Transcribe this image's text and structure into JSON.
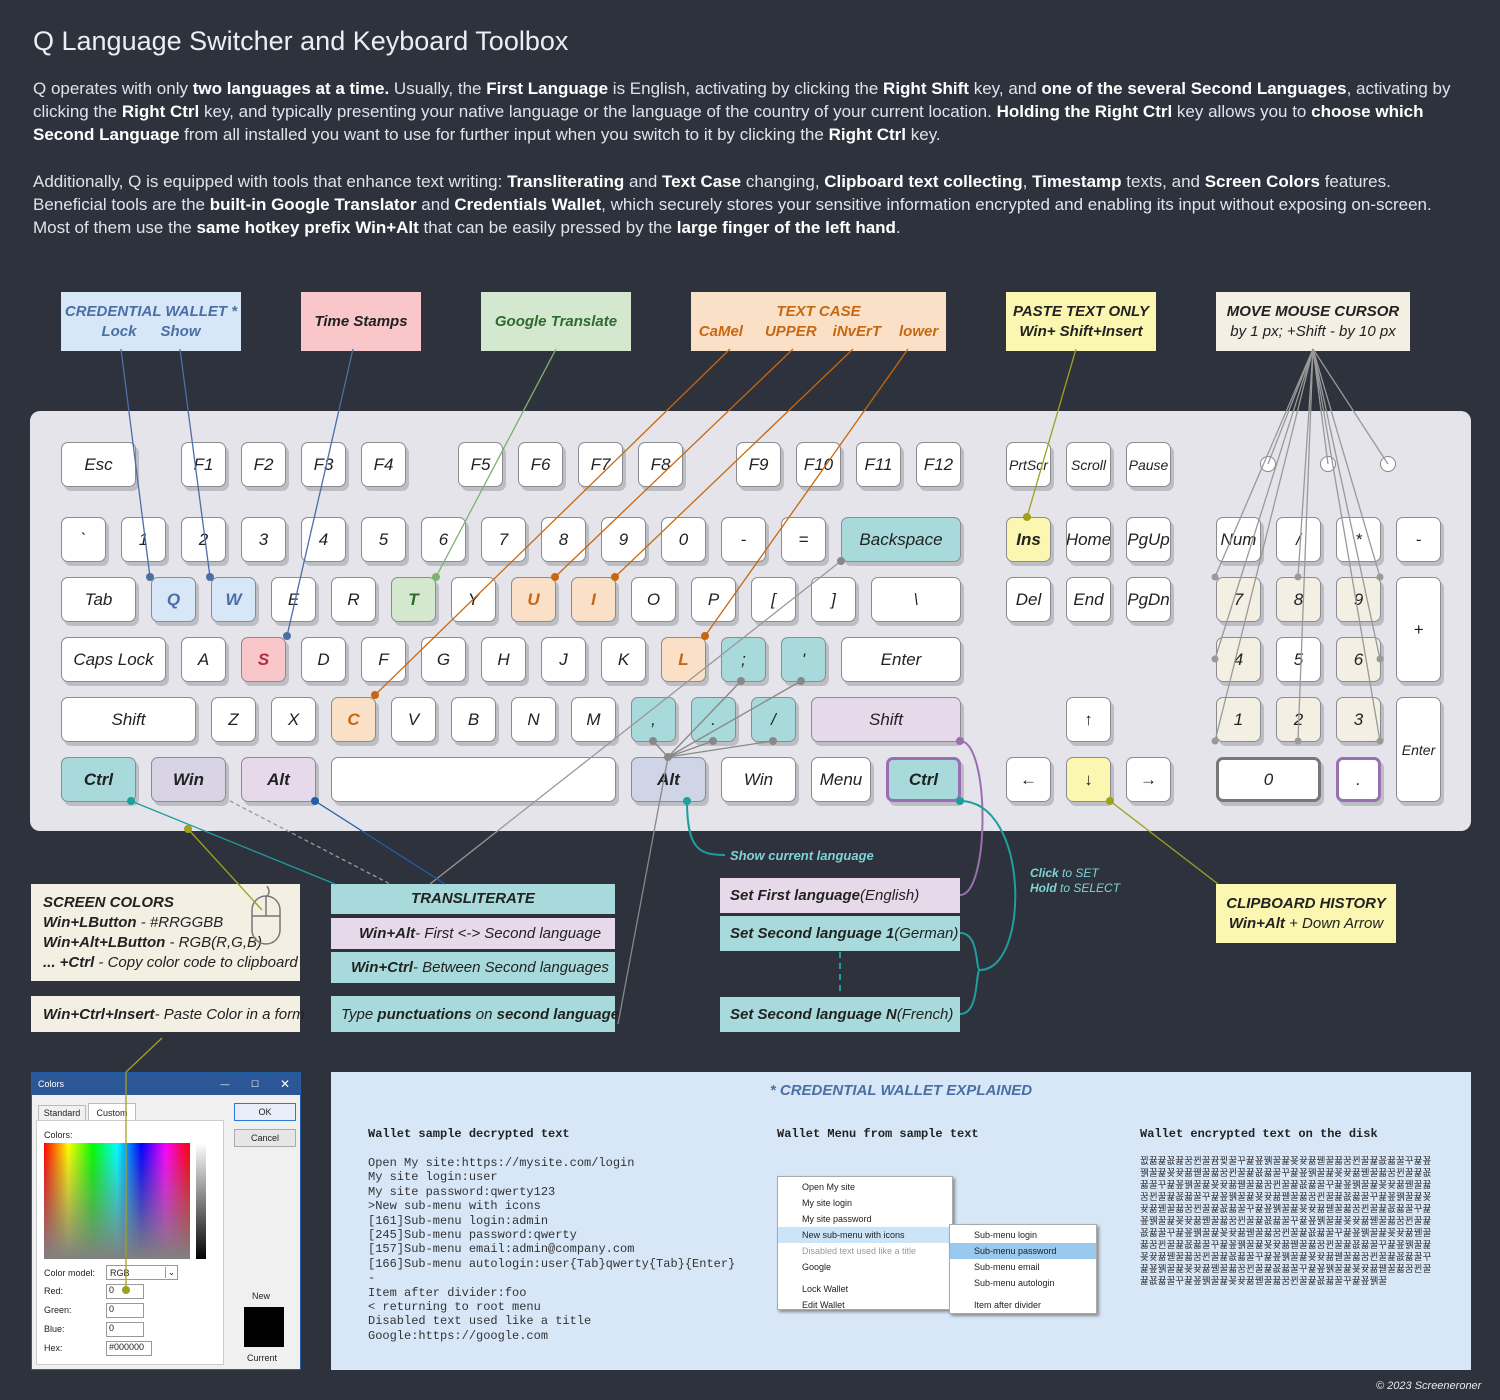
{
  "title": "Q Language Switcher and Keyboard Toolbox",
  "para1": [
    {
      "t": "Q operates with only "
    },
    {
      "t": "two languages at a time.",
      "b": 1
    },
    {
      "t": " Usually, the "
    },
    {
      "t": "First Language",
      "b": 1
    },
    {
      "t": " is English, activating by clicking the "
    },
    {
      "t": "Right Shift",
      "b": 1
    },
    {
      "t": " key, and "
    },
    {
      "t": "one of the several Second Languages",
      "b": 1
    },
    {
      "t": ", activating by clicking the "
    },
    {
      "t": "Right Ctrl",
      "b": 1
    },
    {
      "t": " key, and typically presenting your native language or the language of the country of your current location. "
    },
    {
      "t": "Holding the Right Ctrl",
      "b": 1
    },
    {
      "t": " key allows you to "
    },
    {
      "t": "choose which Second Language",
      "b": 1
    },
    {
      "t": " from all installed you want to use for further input when you switch to it by clicking the "
    },
    {
      "t": "Right Ctrl",
      "b": 1
    },
    {
      "t": " key."
    }
  ],
  "para2": [
    {
      "t": "Additionally, Q is equipped with tools that enhance text writing: "
    },
    {
      "t": "Transliterating",
      "b": 1
    },
    {
      "t": " and "
    },
    {
      "t": "Text Case",
      "b": 1
    },
    {
      "t": " changing, "
    },
    {
      "t": "Clipboard text collecting",
      "b": 1
    },
    {
      "t": ", "
    },
    {
      "t": "Timestamp",
      "b": 1
    },
    {
      "t": " texts, and "
    },
    {
      "t": "Screen Colors",
      "b": 1
    },
    {
      "t": " features. Beneficial tools are the "
    },
    {
      "t": "built-in Google Translator",
      "b": 1
    },
    {
      "t": " and "
    },
    {
      "t": "Credentials Wallet",
      "b": 1
    },
    {
      "t": ", which securely stores your sensitive information encrypted and enabling its input without exposing on-screen. Most of them use the "
    },
    {
      "t": "same hotkey prefix Win+Alt",
      "b": 1
    },
    {
      "t": " that can be easily pressed by the "
    },
    {
      "t": "large finger of the left hand",
      "b": 1
    },
    {
      "t": "."
    }
  ],
  "keys": [
    {
      "l": "Esc"
    },
    {
      "l": "F1"
    },
    {
      "l": "F2"
    },
    {
      "l": "F3"
    },
    {
      "l": "F4"
    },
    {
      "l": "F5"
    },
    {
      "l": "F6"
    },
    {
      "l": "F7"
    },
    {
      "l": "F8"
    },
    {
      "l": "F9"
    },
    {
      "l": "F10"
    },
    {
      "l": "F11"
    },
    {
      "l": "F12"
    },
    {
      "l": "PrtScr"
    },
    {
      "l": "Scroll"
    },
    {
      "l": "Pause"
    },
    {
      "l": "`"
    },
    {
      "l": "1"
    },
    {
      "l": "2"
    },
    {
      "l": "3"
    },
    {
      "l": "4"
    },
    {
      "l": "5"
    },
    {
      "l": "6"
    },
    {
      "l": "7"
    },
    {
      "l": "8"
    },
    {
      "l": "9"
    },
    {
      "l": "0"
    },
    {
      "l": "-"
    },
    {
      "l": "="
    },
    {
      "l": "Backspace",
      "c": "#a8dadc"
    },
    {
      "l": "Ins",
      "c": "#fbf7b0"
    },
    {
      "l": "Home"
    },
    {
      "l": "PgUp"
    },
    {
      "l": "Num"
    },
    {
      "l": "/"
    },
    {
      "l": "*"
    },
    {
      "l": "-"
    },
    {
      "l": "Tab"
    },
    {
      "l": "Q",
      "c": "#d7e7f8"
    },
    {
      "l": "W",
      "c": "#d7e7f8"
    },
    {
      "l": "E"
    },
    {
      "l": "R"
    },
    {
      "l": "T",
      "c": "#d3e8cf"
    },
    {
      "l": "Y"
    },
    {
      "l": "U",
      "c": "#fbe0c8"
    },
    {
      "l": "I",
      "c": "#fbe0c8"
    },
    {
      "l": "O"
    },
    {
      "l": "P"
    },
    {
      "l": "["
    },
    {
      "l": "]"
    },
    {
      "l": "\\"
    },
    {
      "l": "Del"
    },
    {
      "l": "End"
    },
    {
      "l": "PgDn"
    },
    {
      "l": "7",
      "c": "#f3efe3"
    },
    {
      "l": "8",
      "c": "#f3efe3"
    },
    {
      "l": "9",
      "c": "#f3efe3"
    },
    {
      "l": "+"
    },
    {
      "l": "Caps Lock"
    },
    {
      "l": "A"
    },
    {
      "l": "S",
      "c": "#f9c6c9"
    },
    {
      "l": "D"
    },
    {
      "l": "F"
    },
    {
      "l": "G"
    },
    {
      "l": "H"
    },
    {
      "l": "J"
    },
    {
      "l": "K"
    },
    {
      "l": "L",
      "c": "#fbe0c8"
    },
    {
      "l": ";",
      "c": "#a8dadc"
    },
    {
      "l": "'",
      "c": "#a8dadc"
    },
    {
      "l": "Enter"
    },
    {
      "l": "4",
      "c": "#f3efe3"
    },
    {
      "l": "5"
    },
    {
      "l": "6",
      "c": "#f3efe3"
    },
    {
      "l": "Shift"
    },
    {
      "l": "Z"
    },
    {
      "l": "X"
    },
    {
      "l": "C",
      "c": "#fbe0c8"
    },
    {
      "l": "V"
    },
    {
      "l": "B"
    },
    {
      "l": "N"
    },
    {
      "l": "M"
    },
    {
      "l": ",",
      "c": "#a8dadc"
    },
    {
      "l": ".",
      "c": "#a8dadc"
    },
    {
      "l": "/",
      "c": "#a8dadc"
    },
    {
      "l": "Shift",
      "c": "#e6d9ea"
    },
    {
      "l": "↑"
    },
    {
      "l": "1",
      "c": "#f3efe3"
    },
    {
      "l": "2",
      "c": "#f3efe3"
    },
    {
      "l": "3",
      "c": "#f3efe3"
    },
    {
      "l": "Enter"
    },
    {
      "l": "Ctrl",
      "c": "#a8dadc"
    },
    {
      "l": "Win",
      "c": "#d8d4e6"
    },
    {
      "l": "Alt",
      "c": "#e6d9ea"
    },
    {
      "l": ""
    },
    {
      "l": "Alt",
      "c": "#cfd4e6"
    },
    {
      "l": "Win"
    },
    {
      "l": "Menu"
    },
    {
      "l": "Ctrl",
      "c": "#a8dadc"
    },
    {
      "l": "←"
    },
    {
      "l": "↓",
      "c": "#fbf7b0"
    },
    {
      "l": "→"
    },
    {
      "l": "0"
    },
    {
      "l": "."
    }
  ],
  "callouts": {
    "wallet": {
      "title": "CREDENTIAL WALLET *",
      "a": "Lock",
      "b": "Show"
    },
    "timestamps": "Time Stamps",
    "translate": "Google Translate",
    "textcase": {
      "title": "TEXT CASE",
      "a": "CaMel",
      "b": "UPPER",
      "c": "iNvErT",
      "d": "lower"
    },
    "paste": {
      "title": "PASTE TEXT ONLY",
      "sub": "Win+  Shift+Insert"
    },
    "mouse": {
      "title": "MOVE MOUSE CURSOR",
      "sub": "by 1 px; +Shift - by 10 px"
    },
    "screencolors": {
      "title": "SCREEN COLORS",
      "l1a": "Win+LButton",
      "l1b": " - #RRGGBB",
      "l2a": "Win+Alt+LButton",
      "l2b": " - RGB(R,G,B)",
      "l3a": "... +Ctrl",
      "l3b": " - Copy color code to clipboard"
    },
    "pastecolor": {
      "a": "Win+Ctrl+Insert",
      "b": " - Paste Color in a form"
    },
    "translit": "TRANSLITERATE",
    "translit1": {
      "a": "Win+Alt",
      "b": " - First <-> Second language"
    },
    "translit2": {
      "a": "Win+Ctrl",
      "b": " - Between Second languages"
    },
    "punct": {
      "a": "Type ",
      "b": "punctuations",
      "c": " on ",
      "d": "second language"
    },
    "showlang": "Show current language",
    "first": {
      "a": "Set First language",
      "b": " (English)"
    },
    "second1": {
      "a": "Set Second language 1",
      "b": " (German)"
    },
    "secondN": {
      "a": "Set Second language N",
      "b": " (French)"
    },
    "click": {
      "a": "Click",
      "b": " to SET",
      "c": "Hold",
      "d": " to SELECT"
    },
    "clip": {
      "title": "CLIPBOARD HISTORY",
      "a": "Win+Alt",
      "b": " + Down Arrow"
    }
  },
  "colors_dialog": {
    "title": "Colors",
    "tab1": "Standard",
    "tab2": "Custom",
    "ok": "OK",
    "cancel": "Cancel",
    "colors_lbl": "Colors:",
    "model_lbl": "Color model:",
    "model": "RGB",
    "red": "Red:",
    "green": "Green:",
    "blue": "Blue:",
    "hex": "Hex:",
    "rv": "0",
    "gv": "0",
    "bv": "0",
    "hexv": "#000000",
    "new": "New",
    "current": "Current"
  },
  "wallet_explained": {
    "title": "* CREDENTIAL WALLET EXPLAINED",
    "h1": "Wallet sample decrypted text",
    "h2": "Wallet Menu from sample text",
    "h3": "Wallet encrypted text on the disk",
    "lines": [
      "Open My site:https://mysite.com/login",
      "My site login:user",
      "My site password:qwerty123",
      ">New sub-menu with icons",
      "[161]Sub-menu login:admin",
      "[245]Sub-menu password:qwerty",
      "[157]Sub-menu email:admin@company.com",
      "[166]Sub-menu autologin:user{Tab}qwerty{Tab}{Enter}",
      "-",
      "Item after divider:foo",
      "< returning to root menu",
      "Disabled text used like a title",
      "Google:https://google.com"
    ],
    "menu": [
      "Open My site",
      "My site login",
      "My site password",
      "New sub-menu with icons",
      "Disabled text used like a title",
      "Google",
      "Lock Wallet",
      "Edit Wallet"
    ],
    "submenu": [
      "Sub-menu login",
      "Sub-menu password",
      "Sub-menu email",
      "Sub-menu autologin",
      "Item after divider"
    ],
    "encrypted": "뀞뀲뀵꾮뀶꿈뀐꿀뀸뀣꿀꾸뀵꾶꿹꿀뀵꾲뀾뀲꿷꿀뀳꿈뀐꿀뀵꾮뀳꿀꾸뀵꾶꿹꿀뀵꾲뀾뀲꿷꿀뀳꿈뀐꿀뀵꾮뀳꿀꾸뀵꾶꿹꿀뀵꾲뀾뀲꿷꿀뀳꿈뀐꿀뀵꾮뀳꿀꾸뀵꾶꿹꿀뀵꾲뀾뀲꿷꿀뀳꿈뀐꿀뀵꾮뀳꿀꾸뀵꾶꿹꿀뀵꾲뀾뀲꿷꿀뀳꿈뀐꿀뀵꾮뀳꿀꾸뀵꾶꿹꿀뀵꾲뀾뀲꿷꿀뀳꿈뀐꿀뀵꾮뀳꿀꾸뀵꾶꿹꿀뀵꾲뀾뀲꿷꿀뀳꿈뀐꿀뀵꾮뀳꿀꾸뀵꾶꿹꿀뀵꾲뀾뀲꿷꿀뀳꿈뀐꿀뀵꾮뀳꿀꾸뀵꾶꿹꿀뀵꾲뀾뀲꿷꿀뀳꿈뀐꿀뀵꾮뀳꿀꾸뀵꾶꿹꿀뀵꾲뀾뀲꿷꿀뀳꿈뀐꿀뀵꾮뀳꿀꾸뀵꾶꿹꿀뀵꾲뀾뀲꿷꿀뀳꿈뀐꿀뀵꾮뀳꿀꾸뀵꾶꿹꿀뀵꾲뀾뀲꿷꿀뀳꿈뀐꿀뀵꾮뀳꿀꾸뀵꾶꿹꿀뀵꾲뀾뀲꿷꿀뀳꿈뀐꿀뀵꾮뀳꿀꾸뀵꾶꿹꿀뀵꾲뀾뀲꿷꿀뀳꿈뀐꿀뀵꾮뀳꿀꾸뀵꾶꿹꿀뀵꾲뀾뀲꿷꿀뀳꿈뀐꿀뀵꾮뀳꿀꾸뀵꾶꿹꿀뀵꾲뀾뀲꿷꿀뀳꿈뀐꿀뀵꾮뀳꿀꾸뀵꾶꿹꿀뀵꾲뀾뀲꿷꿀뀳꿈뀐꿀뀵꾮뀳꿀꾸뀵꾶꿹꿀뀵꾲뀾뀲꿷꿀뀳꿈뀐꿀뀵꾮뀳꿀꾸뀵꾶꿹꿀"
  },
  "copyright": "© 2023 Screeneroner"
}
